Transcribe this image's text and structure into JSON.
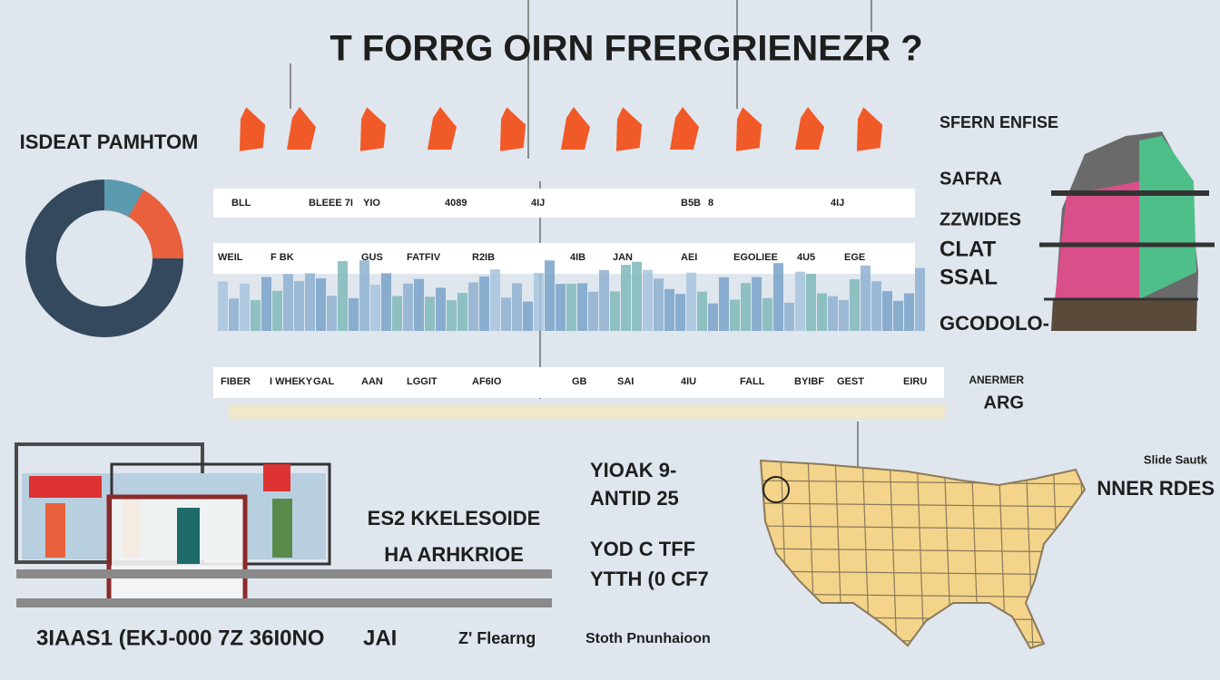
{
  "header": {
    "title": "T FORRG OIRN FRERGRIENEZR ?"
  },
  "donut": {
    "label": "ISDEAT PAMHTOM"
  },
  "table": {
    "rows": [
      [
        "BLL",
        "BLEEE 7I",
        "YIO",
        "4089",
        "4IJ",
        "B5B",
        "8",
        "4IJ"
      ],
      [
        "WEIL",
        "F BK",
        "GUS",
        "FATFIV",
        "R2IB",
        "4IB",
        "JAN",
        "AEI",
        "EGOLIEE",
        "4U5",
        "EGE"
      ],
      [
        "FIBER",
        "I WHEKY",
        "GAL",
        "AAN",
        "LGGIT",
        "AF6IO",
        "GB",
        "SAI",
        "4IU",
        "FALL",
        "BYIBF",
        "GEST",
        "EIRU"
      ]
    ]
  },
  "side_labels": [
    "SFERN ENFISE",
    "SAFRA",
    "ZZWIDES",
    "CLAT",
    "SSAL",
    "GCODOLO-"
  ],
  "side_note": [
    "ANERMER",
    "ARG"
  ],
  "middle": {
    "lines": [
      "ES2 KKELESOIDE",
      "HA ARHKRIOE"
    ]
  },
  "center_text": [
    "YIOAK 9-",
    "ANTID 25",
    "YOD C TFF",
    "YTTH (0 CF7"
  ],
  "map": {
    "label_small": "Slide Sautk",
    "label": "NNER RDES"
  },
  "footer": [
    "3IAAS1 (EKJ-000 7Z 36I0NO",
    "JAI",
    "Z' Flearng",
    "Stoth Pnunhaioon"
  ]
}
